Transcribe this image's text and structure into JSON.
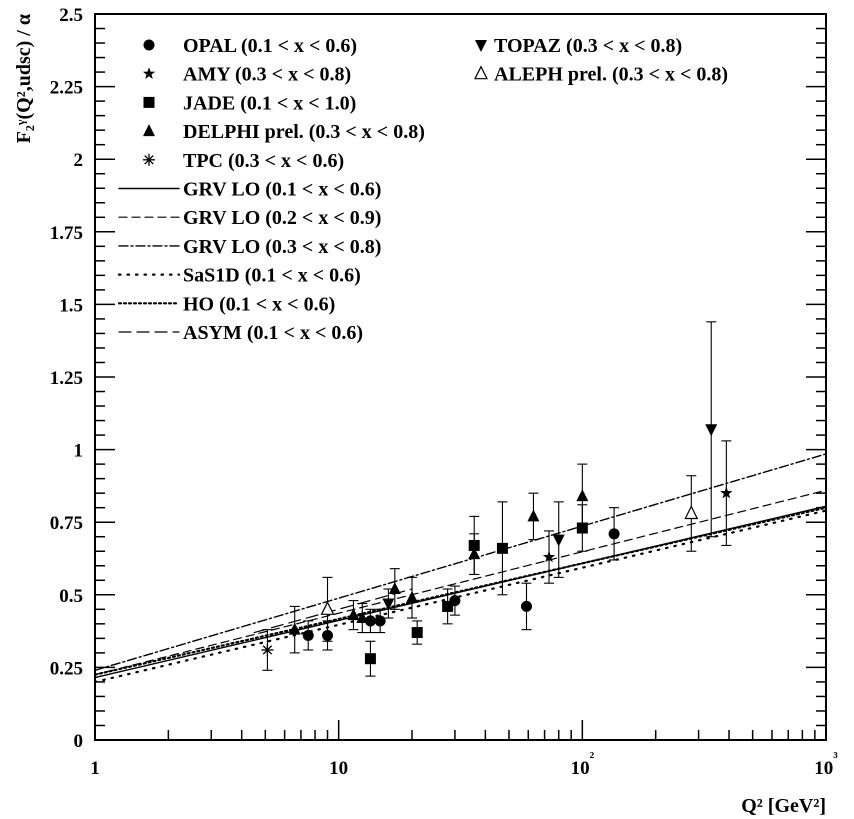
{
  "chart_data": {
    "type": "scatter",
    "xscale": "log",
    "xlim": [
      1,
      1000
    ],
    "ylim": [
      0,
      2.5
    ],
    "xlabel": "Q² [GeV²]",
    "ylabel": "F₂ᵞ(Q²,udsc) / α",
    "x_ticks": [
      "1",
      "10",
      "10²",
      "10³"
    ],
    "y_ticks": [
      "0",
      "0.25",
      "0.5",
      "0.75",
      "1",
      "1.25",
      "1.5",
      "1.75",
      "2",
      "2.25",
      "2.5"
    ],
    "grid": false,
    "legend_placement": "top",
    "data_series": [
      {
        "name": "OPAL (0.1 < x < 0.6)",
        "marker": "circle",
        "points": [
          {
            "x": 7.5,
            "y": 0.36,
            "err": 0.05
          },
          {
            "x": 9,
            "y": 0.36,
            "err": 0.05
          },
          {
            "x": 13.5,
            "y": 0.41,
            "err": 0.04
          },
          {
            "x": 14.8,
            "y": 0.41,
            "err": 0.04
          },
          {
            "x": 30,
            "y": 0.48,
            "err": 0.05
          },
          {
            "x": 59,
            "y": 0.46,
            "err": 0.08
          },
          {
            "x": 135,
            "y": 0.71,
            "err": 0.09
          }
        ]
      },
      {
        "name": "TOPAZ (0.3 < x < 0.8)",
        "marker": "triangle-down",
        "points": [
          {
            "x": 16,
            "y": 0.47,
            "err": 0.05
          },
          {
            "x": 80,
            "y": 0.69,
            "err": 0.13
          },
          {
            "x": 338,
            "y": 1.07,
            "err": 0.37
          }
        ]
      },
      {
        "name": "AMY (0.3 < x < 0.8)",
        "marker": "star",
        "points": [
          {
            "x": 73,
            "y": 0.63,
            "err": 0.09
          },
          {
            "x": 390,
            "y": 0.85,
            "err": 0.18
          }
        ]
      },
      {
        "name": "ALEPH prel. (0.3 < x < 0.8)",
        "marker": "triangle-open",
        "points": [
          {
            "x": 9,
            "y": 0.45,
            "err": 0.11
          },
          {
            "x": 280,
            "y": 0.78,
            "err": 0.13
          }
        ]
      },
      {
        "name": "JADE (0.1 < x < 1.0)",
        "marker": "square",
        "points": [
          {
            "x": 13.5,
            "y": 0.28,
            "err": 0.06
          },
          {
            "x": 21,
            "y": 0.37,
            "err": 0.04
          },
          {
            "x": 28,
            "y": 0.46,
            "err": 0.06
          },
          {
            "x": 36,
            "y": 0.67,
            "err": 0.1
          },
          {
            "x": 47,
            "y": 0.66,
            "err": 0.16
          },
          {
            "x": 100,
            "y": 0.73,
            "err": 0.08
          }
        ]
      },
      {
        "name": "DELPHI prel. (0.3 < x < 0.8)",
        "marker": "triangle-up",
        "points": [
          {
            "x": 6.6,
            "y": 0.38,
            "err": 0.08
          },
          {
            "x": 11.5,
            "y": 0.43,
            "err": 0.05
          },
          {
            "x": 12.5,
            "y": 0.42,
            "err": 0.05
          },
          {
            "x": 17,
            "y": 0.52,
            "err": 0.07
          },
          {
            "x": 20,
            "y": 0.49,
            "err": 0.07
          },
          {
            "x": 36,
            "y": 0.64,
            "err": 0.07
          },
          {
            "x": 63,
            "y": 0.77,
            "err": 0.08
          },
          {
            "x": 100,
            "y": 0.84,
            "err": 0.11
          }
        ]
      },
      {
        "name": "TPC (0.3 < x < 0.6)",
        "marker": "asterisk",
        "points": [
          {
            "x": 5.1,
            "y": 0.31,
            "err": 0.07
          }
        ]
      }
    ],
    "curves": [
      {
        "name": "GRV LO (0.1 < x < 0.6)",
        "dash": "solid",
        "x": [
          1,
          1000
        ],
        "y": [
          0.215,
          0.805
        ]
      },
      {
        "name": "GRV LO (0.2 < x < 0.9)",
        "dash": "dashed",
        "x": [
          1,
          1000
        ],
        "y": [
          0.225,
          0.86
        ]
      },
      {
        "name": "GRV LO (0.3 < x < 0.8)",
        "dash": "dashdot",
        "x": [
          1,
          1000
        ],
        "y": [
          0.24,
          0.985
        ]
      },
      {
        "name": "SaS1D (0.1 < x < 0.6)",
        "dash": "sparse-dot",
        "x": [
          1,
          1000
        ],
        "y": [
          0.2,
          0.79
        ]
      },
      {
        "name": "HO (0.1 < x < 0.6)",
        "dash": "dense-dot",
        "x": [
          1,
          1000
        ],
        "y": [
          0.225,
          0.8
        ]
      },
      {
        "name": "ASYM (0.1 < x < 0.6)",
        "dash": "dashed-long",
        "x": [
          4.5,
          20
        ],
        "y": [
          0.37,
          0.52
        ]
      }
    ],
    "legend_left": [
      "OPAL (0.1 < x < 0.6)",
      "AMY (0.3 < x < 0.8)",
      "JADE (0.1 < x < 1.0)",
      "DELPHI prel. (0.3 < x < 0.8)",
      "TPC (0.3 < x < 0.6)",
      "GRV LO (0.1 < x < 0.6)",
      "GRV LO (0.2 < x < 0.9)",
      "GRV LO (0.3 < x < 0.8)",
      "SaS1D (0.1 < x < 0.6)",
      "HO (0.1 < x < 0.6)",
      "ASYM (0.1 < x < 0.6)"
    ],
    "legend_right": [
      "TOPAZ (0.3 < x < 0.8)",
      "ALEPH prel. (0.3 < x < 0.8)"
    ]
  }
}
